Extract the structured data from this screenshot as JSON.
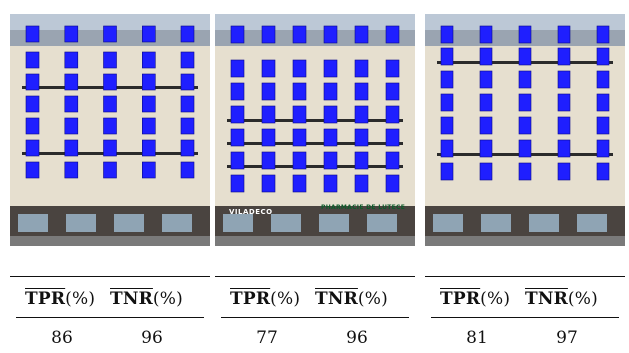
{
  "figures": [
    {
      "tpr_label": "TPR",
      "tpr_unit": "(%)",
      "tnr_label": "TNR",
      "tnr_unit": "(%)",
      "tpr": "86",
      "tnr": "96",
      "shop_signs": [
        "",
        "",
        ""
      ]
    },
    {
      "tpr_label": "TPR",
      "tpr_unit": "(%)",
      "tnr_label": "TNR",
      "tnr_unit": "(%)",
      "tpr": "77",
      "tnr": "96",
      "shop_signs": [
        "VILADECO",
        "PHARMACIE DE LUTECE"
      ]
    },
    {
      "tpr_label": "TPR",
      "tpr_unit": "(%)",
      "tnr_label": "TNR",
      "tnr_unit": "(%)",
      "tpr": "81",
      "tnr": "97",
      "shop_signs": [
        "",
        ""
      ]
    }
  ],
  "colors": {
    "window_highlight": "#1f1fff",
    "facade": "#e6dfcf",
    "roof": "#9aa4b1",
    "sky": "#bcc8d6",
    "rule": "#111111"
  }
}
